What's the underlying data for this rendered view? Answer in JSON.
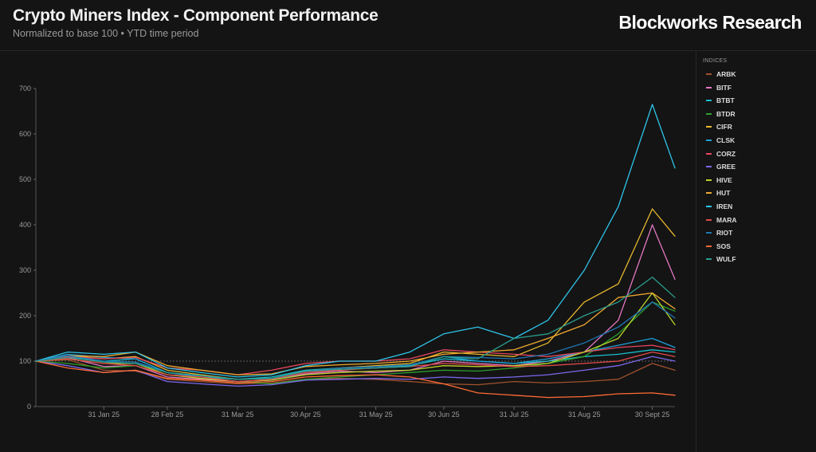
{
  "header": {
    "title": "Crypto Miners Index - Component Performance",
    "subtitle": "Normalized to base 100 • YTD time period",
    "brand": "Blockworks Research"
  },
  "legend": {
    "title": "INDICES",
    "items": [
      {
        "label": "ARBK",
        "color": "#a0522d"
      },
      {
        "label": "BITF",
        "color": "#e377c2"
      },
      {
        "label": "BTBT",
        "color": "#17becf"
      },
      {
        "label": "BTDR",
        "color": "#2ca02c"
      },
      {
        "label": "CIFR",
        "color": "#e6b82e"
      },
      {
        "label": "CLSK",
        "color": "#1f9fd6"
      },
      {
        "label": "CORZ",
        "color": "#e8475f"
      },
      {
        "label": "GREE",
        "color": "#7b68ee"
      },
      {
        "label": "HIVE",
        "color": "#bcd22a"
      },
      {
        "label": "HUT",
        "color": "#f0a830"
      },
      {
        "label": "IREN",
        "color": "#2ec4e8"
      },
      {
        "label": "MARA",
        "color": "#e24a4a"
      },
      {
        "label": "RIOT",
        "color": "#1f77b4"
      },
      {
        "label": "SOS",
        "color": "#ff6b35"
      },
      {
        "label": "WULF",
        "color": "#2a9d8f"
      }
    ]
  },
  "chart_data": {
    "type": "line",
    "title": "Crypto Miners Index - Component Performance",
    "subtitle": "Normalized to base 100 • YTD time period",
    "ylim": [
      0,
      700
    ],
    "yticks": [
      0,
      100,
      200,
      300,
      400,
      500,
      600,
      700
    ],
    "x_ticks": [
      "31 Jan 25",
      "28 Feb 25",
      "31 Mar 25",
      "30 Apr 25",
      "31 May 25",
      "30 Jun 25",
      "31 Jul 25",
      "31 Aug 25",
      "30 Sept 25"
    ],
    "baseline": 100,
    "x": [
      "2025-01-01",
      "2025-01-15",
      "2025-01-31",
      "2025-02-14",
      "2025-02-28",
      "2025-03-15",
      "2025-03-31",
      "2025-04-15",
      "2025-04-30",
      "2025-05-15",
      "2025-05-31",
      "2025-06-15",
      "2025-06-30",
      "2025-07-15",
      "2025-07-31",
      "2025-08-15",
      "2025-08-31",
      "2025-09-15",
      "2025-09-30",
      "2025-10-10"
    ],
    "series": [
      {
        "name": "ARBK",
        "values": [
          100,
          103,
          80,
          78,
          60,
          55,
          50,
          52,
          60,
          62,
          60,
          55,
          50,
          48,
          55,
          52,
          55,
          60,
          95,
          80
        ]
      },
      {
        "name": "BITF",
        "values": [
          100,
          108,
          88,
          90,
          65,
          60,
          55,
          58,
          72,
          78,
          75,
          80,
          100,
          95,
          90,
          100,
          120,
          190,
          400,
          280
        ]
      },
      {
        "name": "BTBT",
        "values": [
          100,
          110,
          100,
          105,
          75,
          65,
          60,
          65,
          80,
          85,
          88,
          90,
          105,
          100,
          95,
          100,
          110,
          115,
          125,
          120
        ]
      },
      {
        "name": "BTDR",
        "values": [
          100,
          95,
          85,
          90,
          70,
          65,
          55,
          50,
          60,
          65,
          70,
          75,
          80,
          78,
          85,
          95,
          110,
          160,
          230,
          210
        ]
      },
      {
        "name": "CIFR",
        "values": [
          100,
          112,
          105,
          110,
          80,
          70,
          60,
          62,
          78,
          85,
          90,
          95,
          120,
          115,
          110,
          140,
          230,
          270,
          435,
          375
        ]
      },
      {
        "name": "CLSK",
        "values": [
          100,
          115,
          108,
          105,
          75,
          65,
          55,
          58,
          75,
          82,
          85,
          88,
          110,
          100,
          95,
          105,
          120,
          135,
          150,
          130
        ]
      },
      {
        "name": "CORZ",
        "values": [
          100,
          110,
          105,
          108,
          85,
          80,
          70,
          80,
          95,
          100,
          100,
          105,
          125,
          120,
          115,
          110,
          120,
          130,
          135,
          125
        ]
      },
      {
        "name": "GREE",
        "values": [
          100,
          90,
          75,
          80,
          55,
          50,
          45,
          48,
          58,
          60,
          62,
          60,
          65,
          62,
          65,
          70,
          80,
          90,
          110,
          100
        ]
      },
      {
        "name": "HIVE",
        "values": [
          100,
          105,
          95,
          95,
          70,
          62,
          55,
          58,
          70,
          75,
          78,
          80,
          90,
          88,
          90,
          95,
          120,
          150,
          250,
          180
        ]
      },
      {
        "name": "HUT",
        "values": [
          100,
          112,
          110,
          120,
          90,
          80,
          70,
          72,
          88,
          92,
          95,
          100,
          115,
          120,
          125,
          150,
          180,
          240,
          250,
          215
        ]
      },
      {
        "name": "IREN",
        "values": [
          100,
          120,
          115,
          120,
          85,
          75,
          65,
          70,
          90,
          100,
          100,
          120,
          160,
          175,
          150,
          190,
          300,
          440,
          665,
          525
        ]
      },
      {
        "name": "MARA",
        "values": [
          100,
          105,
          95,
          90,
          70,
          65,
          55,
          60,
          75,
          80,
          85,
          88,
          95,
          92,
          88,
          90,
          95,
          100,
          120,
          110
        ]
      },
      {
        "name": "RIOT",
        "values": [
          100,
          112,
          100,
          98,
          75,
          68,
          60,
          62,
          78,
          85,
          88,
          92,
          110,
          108,
          105,
          115,
          140,
          175,
          230,
          195
        ]
      },
      {
        "name": "SOS",
        "values": [
          100,
          85,
          75,
          80,
          62,
          58,
          52,
          55,
          65,
          68,
          70,
          65,
          50,
          30,
          25,
          20,
          22,
          28,
          30,
          25
        ]
      },
      {
        "name": "WULF",
        "values": [
          100,
          108,
          98,
          95,
          75,
          68,
          60,
          62,
          78,
          82,
          85,
          88,
          110,
          105,
          150,
          160,
          200,
          230,
          285,
          240
        ]
      }
    ]
  }
}
